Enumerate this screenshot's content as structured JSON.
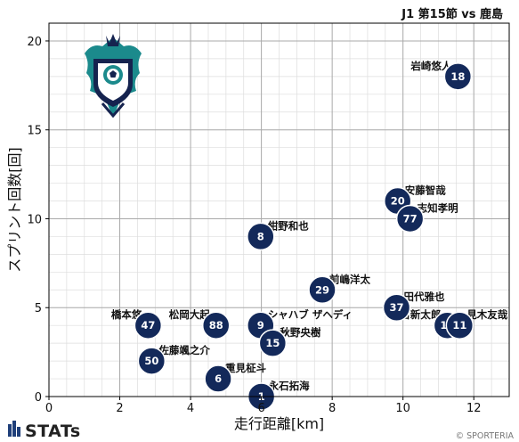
{
  "header": {
    "match_title": "J1 第15節 vs 鹿島"
  },
  "footer": {
    "brand": "STATs",
    "copyright": "© SPORTERIA"
  },
  "colors": {
    "marker": "#13295a",
    "marker_edge": "#ffffff",
    "grid_major": "#aaaaaa",
    "grid_minor": "#dddddd",
    "logo_primary": "#1b8a8c",
    "logo_dark": "#15234f"
  },
  "logo": {
    "icon": "club-emblem-icon"
  },
  "chart_data": {
    "type": "scatter",
    "xlabel": "走行距離[km]",
    "ylabel": "スプリント回数[回]",
    "xlim": [
      0,
      13
    ],
    "ylim": [
      0,
      21
    ],
    "xticks": [
      0,
      2,
      4,
      6,
      8,
      10,
      12
    ],
    "yticks": [
      0,
      5,
      10,
      15,
      20
    ],
    "grid": true,
    "points": [
      {
        "number": "18",
        "name": "岩崎悠人",
        "x": 11.55,
        "y": 18,
        "label_pos": "left"
      },
      {
        "number": "20",
        "name": "安藤智哉",
        "x": 9.85,
        "y": 11,
        "label_pos": "right"
      },
      {
        "number": "77",
        "name": "志知孝明",
        "x": 10.2,
        "y": 10,
        "label_pos": "right"
      },
      {
        "number": "8",
        "name": "紺野和也",
        "x": 5.98,
        "y": 9,
        "label_pos": "right"
      },
      {
        "number": "29",
        "name": "前嶋洋太",
        "x": 7.72,
        "y": 6,
        "label_pos": "right"
      },
      {
        "number": "37",
        "name": "田代雅也",
        "x": 9.82,
        "y": 5,
        "label_pos": "right"
      },
      {
        "number": "47",
        "name": "橋本悠",
        "x": 2.8,
        "y": 4,
        "label_pos": "left"
      },
      {
        "number": "88",
        "name": "松岡大起",
        "x": 4.72,
        "y": 4,
        "label_pos": "left"
      },
      {
        "number": "9",
        "name": "シャハブ ザヘディ",
        "x": 5.98,
        "y": 4,
        "label_pos": "right"
      },
      {
        "number": "14",
        "name": "名古新太郎",
        "x": 11.25,
        "y": 4,
        "label_pos": "left"
      },
      {
        "number": "11",
        "name": "見木友哉",
        "x": 11.6,
        "y": 4,
        "label_pos": "right"
      },
      {
        "number": "15",
        "name": "秋野央樹",
        "x": 6.32,
        "y": 3,
        "label_pos": "right"
      },
      {
        "number": "50",
        "name": "佐藤颯之介",
        "x": 2.9,
        "y": 2,
        "label_pos": "right"
      },
      {
        "number": "6",
        "name": "重見柾斗",
        "x": 4.78,
        "y": 1,
        "label_pos": "right"
      },
      {
        "number": "1",
        "name": "永石拓海",
        "x": 6.0,
        "y": 0,
        "label_pos": "right"
      }
    ]
  }
}
